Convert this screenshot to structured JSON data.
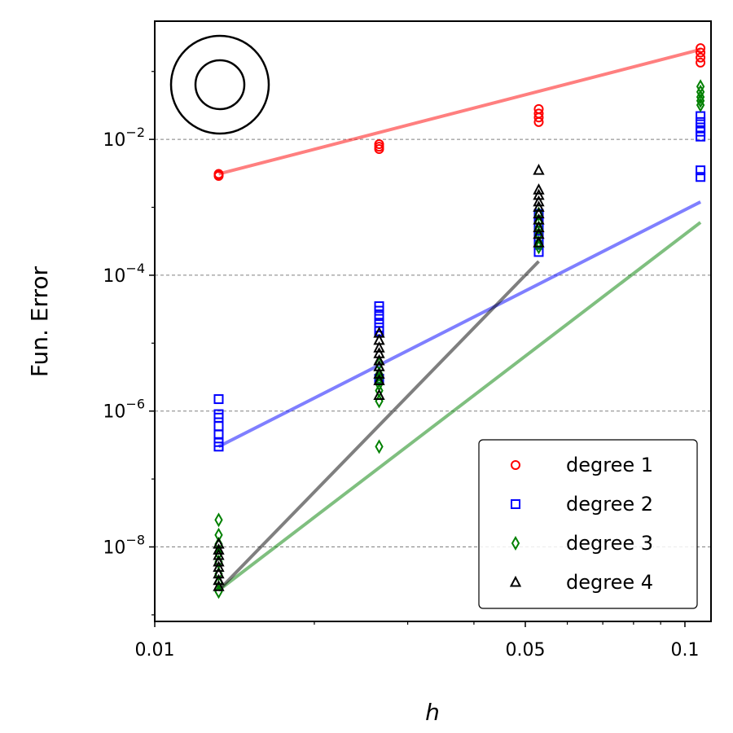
{
  "chart_data": {
    "type": "scatter",
    "title": "",
    "xlabel": "h",
    "ylabel": "Fun. Error",
    "x_scale": "log",
    "y_scale": "log",
    "xlim": [
      0.01,
      0.112
    ],
    "ylim": [
      8e-10,
      0.55
    ],
    "x_ticks": [
      {
        "value": 0.01,
        "label": "0.01"
      },
      {
        "value": 0.05,
        "label": "0.05"
      },
      {
        "value": 0.1,
        "label": "0.1"
      }
    ],
    "y_ticks": [
      {
        "value": 1e-08,
        "base": "10",
        "exp": "−8"
      },
      {
        "value": 1e-06,
        "base": "10",
        "exp": "−6"
      },
      {
        "value": 0.0001,
        "base": "10",
        "exp": "−4"
      },
      {
        "value": 0.01,
        "base": "10",
        "exp": "−2"
      }
    ],
    "grid": "horizontal dashed at major y ticks",
    "legend_position": "bottom-right",
    "inset_icon": "annulus (two concentric circles)",
    "series": [
      {
        "name": "degree 1",
        "marker": "circle",
        "color": "#ff0000",
        "points": [
          {
            "x": 0.0132,
            "y": 0.0031
          },
          {
            "x": 0.0132,
            "y": 0.003
          },
          {
            "x": 0.0132,
            "y": 0.0029
          },
          {
            "x": 0.0265,
            "y": 0.0085
          },
          {
            "x": 0.0265,
            "y": 0.0078
          },
          {
            "x": 0.0265,
            "y": 0.0072
          },
          {
            "x": 0.053,
            "y": 0.028
          },
          {
            "x": 0.053,
            "y": 0.024
          },
          {
            "x": 0.053,
            "y": 0.021
          },
          {
            "x": 0.053,
            "y": 0.018
          },
          {
            "x": 0.107,
            "y": 0.22
          },
          {
            "x": 0.107,
            "y": 0.19
          },
          {
            "x": 0.107,
            "y": 0.16
          },
          {
            "x": 0.107,
            "y": 0.135
          }
        ],
        "fit_line": [
          {
            "x": 0.0132,
            "y": 0.0031
          },
          {
            "x": 0.107,
            "y": 0.21
          }
        ]
      },
      {
        "name": "degree 2",
        "marker": "square",
        "color": "#0000ff",
        "points": [
          {
            "x": 0.0132,
            "y": 1.5e-06
          },
          {
            "x": 0.0132,
            "y": 9e-07
          },
          {
            "x": 0.0132,
            "y": 8e-07
          },
          {
            "x": 0.0132,
            "y": 6e-07
          },
          {
            "x": 0.0132,
            "y": 4.5e-07
          },
          {
            "x": 0.0132,
            "y": 3.5e-07
          },
          {
            "x": 0.0132,
            "y": 3e-07
          },
          {
            "x": 0.0265,
            "y": 3.5e-05
          },
          {
            "x": 0.0265,
            "y": 3e-05
          },
          {
            "x": 0.0265,
            "y": 2.5e-05
          },
          {
            "x": 0.0265,
            "y": 2e-05
          },
          {
            "x": 0.0265,
            "y": 1.7e-05
          },
          {
            "x": 0.0265,
            "y": 1.5e-05
          },
          {
            "x": 0.0265,
            "y": 3e-06
          },
          {
            "x": 0.053,
            "y": 0.0008
          },
          {
            "x": 0.053,
            "y": 0.0006
          },
          {
            "x": 0.053,
            "y": 0.00045
          },
          {
            "x": 0.053,
            "y": 0.00035
          },
          {
            "x": 0.053,
            "y": 0.00028
          },
          {
            "x": 0.053,
            "y": 0.00022
          },
          {
            "x": 0.107,
            "y": 0.022
          },
          {
            "x": 0.107,
            "y": 0.018
          },
          {
            "x": 0.107,
            "y": 0.015
          },
          {
            "x": 0.107,
            "y": 0.013
          },
          {
            "x": 0.107,
            "y": 0.011
          },
          {
            "x": 0.107,
            "y": 0.0035
          },
          {
            "x": 0.107,
            "y": 0.0028
          }
        ],
        "fit_line": [
          {
            "x": 0.0132,
            "y": 3e-07
          },
          {
            "x": 0.107,
            "y": 0.0012
          }
        ]
      },
      {
        "name": "degree 3",
        "marker": "diamond",
        "color": "#008000",
        "points": [
          {
            "x": 0.0132,
            "y": 2.5e-08
          },
          {
            "x": 0.0132,
            "y": 1.5e-08
          },
          {
            "x": 0.0132,
            "y": 1.1e-08
          },
          {
            "x": 0.0132,
            "y": 8e-09
          },
          {
            "x": 0.0132,
            "y": 6e-09
          },
          {
            "x": 0.0132,
            "y": 4e-09
          },
          {
            "x": 0.0132,
            "y": 3e-09
          },
          {
            "x": 0.0132,
            "y": 2.2e-09
          },
          {
            "x": 0.0265,
            "y": 5e-06
          },
          {
            "x": 0.0265,
            "y": 3.5e-06
          },
          {
            "x": 0.0265,
            "y": 3e-06
          },
          {
            "x": 0.0265,
            "y": 2.5e-06
          },
          {
            "x": 0.0265,
            "y": 2e-06
          },
          {
            "x": 0.0265,
            "y": 1.4e-06
          },
          {
            "x": 0.0265,
            "y": 3e-07
          },
          {
            "x": 0.053,
            "y": 0.0008
          },
          {
            "x": 0.053,
            "y": 0.0006
          },
          {
            "x": 0.053,
            "y": 0.0005
          },
          {
            "x": 0.053,
            "y": 0.0004
          },
          {
            "x": 0.053,
            "y": 0.0003
          },
          {
            "x": 0.053,
            "y": 0.00026
          },
          {
            "x": 0.107,
            "y": 0.06
          },
          {
            "x": 0.107,
            "y": 0.05
          },
          {
            "x": 0.107,
            "y": 0.042
          },
          {
            "x": 0.107,
            "y": 0.037
          },
          {
            "x": 0.107,
            "y": 0.032
          }
        ],
        "fit_line": [
          {
            "x": 0.0132,
            "y": 2.3e-09
          },
          {
            "x": 0.107,
            "y": 0.0006
          }
        ]
      },
      {
        "name": "degree 4",
        "marker": "triangle",
        "color": "#000000",
        "points": [
          {
            "x": 0.0132,
            "y": 1.1e-08
          },
          {
            "x": 0.0132,
            "y": 9e-09
          },
          {
            "x": 0.0132,
            "y": 7.5e-09
          },
          {
            "x": 0.0132,
            "y": 6e-09
          },
          {
            "x": 0.0132,
            "y": 5e-09
          },
          {
            "x": 0.0132,
            "y": 4e-09
          },
          {
            "x": 0.0132,
            "y": 3.2e-09
          },
          {
            "x": 0.0132,
            "y": 2.6e-09
          },
          {
            "x": 0.0265,
            "y": 1.4e-05
          },
          {
            "x": 0.0265,
            "y": 1.1e-05
          },
          {
            "x": 0.0265,
            "y": 8.5e-06
          },
          {
            "x": 0.0265,
            "y": 7e-06
          },
          {
            "x": 0.0265,
            "y": 5.5e-06
          },
          {
            "x": 0.0265,
            "y": 4.5e-06
          },
          {
            "x": 0.0265,
            "y": 3.5e-06
          },
          {
            "x": 0.0265,
            "y": 2.8e-06
          },
          {
            "x": 0.0265,
            "y": 1.7e-06
          },
          {
            "x": 0.053,
            "y": 0.0035
          },
          {
            "x": 0.053,
            "y": 0.0018
          },
          {
            "x": 0.053,
            "y": 0.0015
          },
          {
            "x": 0.053,
            "y": 0.0012
          },
          {
            "x": 0.053,
            "y": 0.001
          },
          {
            "x": 0.053,
            "y": 0.0008
          },
          {
            "x": 0.053,
            "y": 0.00065
          },
          {
            "x": 0.053,
            "y": 0.0005
          },
          {
            "x": 0.053,
            "y": 0.0004
          },
          {
            "x": 0.053,
            "y": 0.0003
          }
        ],
        "fit_line": [
          {
            "x": 0.0132,
            "y": 2.3e-09
          },
          {
            "x": 0.053,
            "y": 0.00016
          }
        ]
      }
    ]
  }
}
